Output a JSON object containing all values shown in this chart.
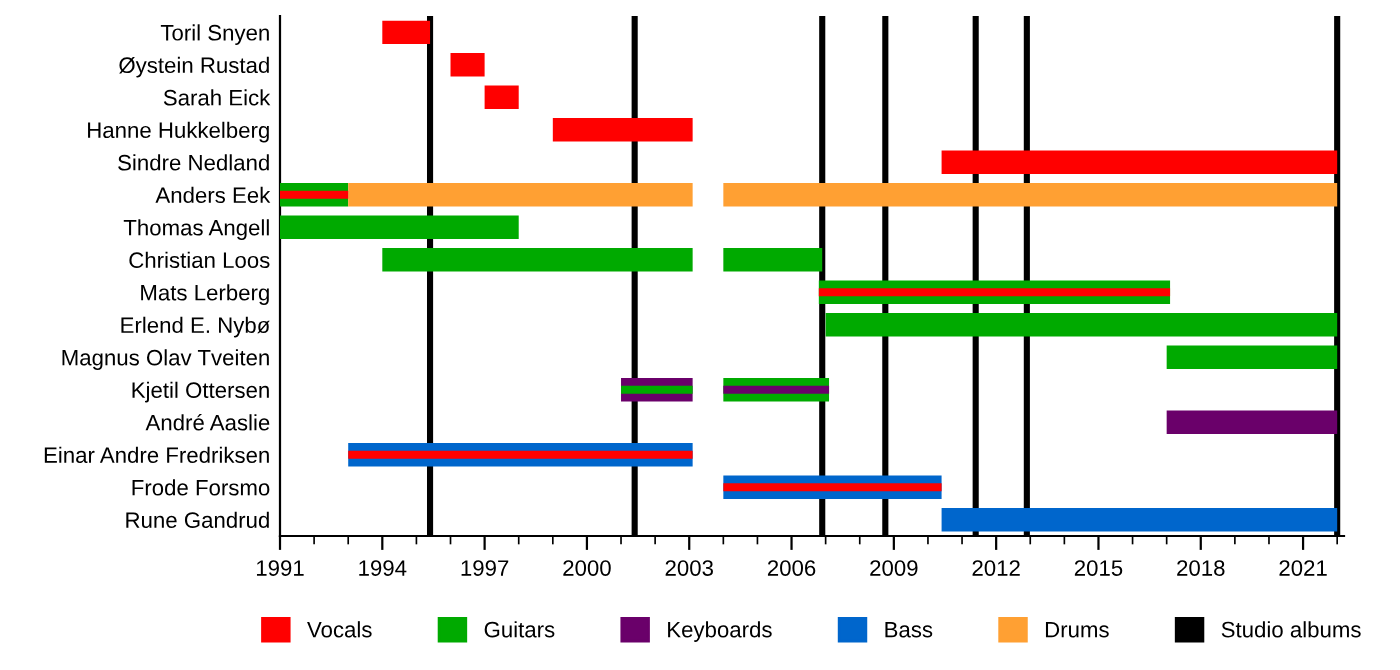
{
  "chart_data": {
    "type": "bar",
    "orientation": "horizontal",
    "legend": "bottom",
    "grid": false,
    "categories": [
      "Toril Snyen",
      "Øystein Rustad",
      "Sarah Eick",
      "Hanne Hukkelberg",
      "Sindre Nedland",
      "Anders Eek",
      "Thomas Angell",
      "Christian Loos",
      "Mats Lerberg",
      "Erlend E. Nybø",
      "Magnus Olav Tveiten",
      "Kjetil Ottersen",
      "André Aaslie",
      "Einar Andre Fredriksen",
      "Frode Forsmo",
      "Rune Gandrud"
    ],
    "series": [
      {
        "name": "Vocals",
        "color": "#ff0000",
        "base": [
          1994,
          1996,
          1997,
          1999,
          2010.4,
          null,
          null,
          null,
          null,
          null,
          null,
          null,
          null,
          null,
          null,
          null
        ],
        "values": [
          1.4,
          1,
          1,
          4.1,
          11.6,
          null,
          null,
          null,
          null,
          null,
          null,
          null,
          null,
          null,
          null,
          null
        ]
      },
      {
        "name": "Guitars",
        "color": "#00aa00",
        "base": [
          null,
          null,
          null,
          null,
          null,
          1991,
          1991,
          1994,
          2006.8,
          2007,
          2017,
          null,
          null,
          null,
          null,
          null
        ],
        "values": [
          null,
          null,
          null,
          null,
          null,
          2,
          7,
          9.1,
          10.3,
          15.0,
          5.0,
          null,
          null,
          null,
          null,
          null
        ]
      },
      {
        "color": "#00aa00",
        "base": [
          null,
          null,
          null,
          null,
          null,
          null,
          null,
          2004,
          null,
          null,
          null,
          2004,
          null,
          null,
          null,
          null
        ],
        "values": [
          null,
          null,
          null,
          null,
          null,
          null,
          null,
          2.9,
          null,
          null,
          null,
          3.1,
          null,
          null,
          null,
          null
        ]
      },
      {
        "name": "Keyboards",
        "color": "#6a006a",
        "base": [
          null,
          null,
          null,
          null,
          null,
          null,
          null,
          null,
          null,
          null,
          null,
          2001,
          2017,
          null,
          null,
          null
        ],
        "values": [
          null,
          null,
          null,
          null,
          null,
          null,
          null,
          null,
          null,
          null,
          null,
          2.1,
          5.0,
          null,
          null,
          null
        ]
      },
      {
        "name": "Bass",
        "color": "#0066cc",
        "base": [
          null,
          null,
          null,
          null,
          null,
          null,
          null,
          null,
          null,
          null,
          null,
          null,
          null,
          1993,
          2004,
          2010.4
        ],
        "values": [
          null,
          null,
          null,
          null,
          null,
          null,
          null,
          null,
          null,
          null,
          null,
          null,
          null,
          10.1,
          6.4,
          11.6
        ]
      },
      {
        "name": "Drums",
        "color": "#ffa033",
        "base": [
          null,
          null,
          null,
          null,
          null,
          1993,
          null,
          null,
          null,
          null,
          null,
          null,
          null,
          null,
          null,
          null
        ],
        "values": [
          null,
          null,
          null,
          null,
          null,
          10.1,
          null,
          null,
          null,
          null,
          null,
          null,
          null,
          null,
          null,
          null
        ]
      },
      {
        "color": "#ffa033",
        "base": [
          null,
          null,
          null,
          null,
          null,
          2004,
          null,
          null,
          null,
          null,
          null,
          null,
          null,
          null,
          null,
          null
        ],
        "values": [
          null,
          null,
          null,
          null,
          null,
          18.0,
          null,
          null,
          null,
          null,
          null,
          null,
          null,
          null,
          null,
          null
        ]
      },
      {
        "color": "#ff0000",
        "base": [
          null,
          null,
          null,
          null,
          null,
          1991,
          null,
          null,
          2006.8,
          null,
          null,
          null,
          null,
          1993,
          2004,
          null
        ],
        "values": [
          null,
          null,
          null,
          null,
          null,
          2,
          null,
          null,
          10.3,
          null,
          null,
          null,
          null,
          10.1,
          6.4,
          null
        ]
      },
      {
        "color": "#00aa00",
        "base": [
          null,
          null,
          null,
          null,
          null,
          null,
          null,
          null,
          null,
          null,
          null,
          2001,
          null,
          null,
          null,
          null
        ],
        "values": [
          null,
          null,
          null,
          null,
          null,
          null,
          null,
          null,
          null,
          null,
          null,
          2.1,
          null,
          null,
          null,
          null
        ]
      },
      {
        "color": "#6a006a",
        "base": [
          null,
          null,
          null,
          null,
          null,
          null,
          null,
          null,
          null,
          null,
          null,
          2004,
          null,
          null,
          null,
          null
        ],
        "values": [
          null,
          null,
          null,
          null,
          null,
          null,
          null,
          null,
          null,
          null,
          null,
          3.1,
          null,
          null,
          null,
          null
        ]
      }
    ],
    "ref_lines": [
      {
        "axis": "x",
        "value": 1995.4,
        "label": "Studio albums",
        "color": "#000000"
      },
      {
        "axis": "x",
        "value": 2001.4,
        "color": "#000000"
      },
      {
        "axis": "x",
        "value": 2006.9,
        "color": "#000000"
      },
      {
        "axis": "x",
        "value": 2008.75,
        "color": "#000000"
      },
      {
        "axis": "x",
        "value": 2011.4,
        "color": "#000000"
      },
      {
        "axis": "x",
        "value": 2012.9,
        "color": "#000000"
      },
      {
        "axis": "x",
        "value": 2022.0,
        "color": "#000000"
      }
    ],
    "xlim": [
      1991,
      2022.2
    ],
    "xticks": [
      1991,
      {
        "value": 1992,
        "label": null
      },
      {
        "value": 1993,
        "label": null
      },
      1994,
      {
        "value": 1995,
        "label": null
      },
      {
        "value": 1996,
        "label": null
      },
      1997,
      {
        "value": 1998,
        "label": null
      },
      {
        "value": 1999,
        "label": null
      },
      2000,
      {
        "value": 2001,
        "label": null
      },
      {
        "value": 2002,
        "label": null
      },
      2003,
      {
        "value": 2004,
        "label": null
      },
      {
        "value": 2005,
        "label": null
      },
      2006,
      {
        "value": 2007,
        "label": null
      },
      {
        "value": 2008,
        "label": null
      },
      2009,
      {
        "value": 2010,
        "label": null
      },
      {
        "value": 2011,
        "label": null
      },
      2012,
      {
        "value": 2013,
        "label": null
      },
      {
        "value": 2014,
        "label": null
      },
      2015,
      {
        "value": 2016,
        "label": null
      },
      {
        "value": 2017,
        "label": null
      },
      2018,
      {
        "value": 2019,
        "label": null
      },
      {
        "value": 2020,
        "label": null
      },
      2021,
      {
        "value": 2022,
        "label": null
      }
    ]
  }
}
